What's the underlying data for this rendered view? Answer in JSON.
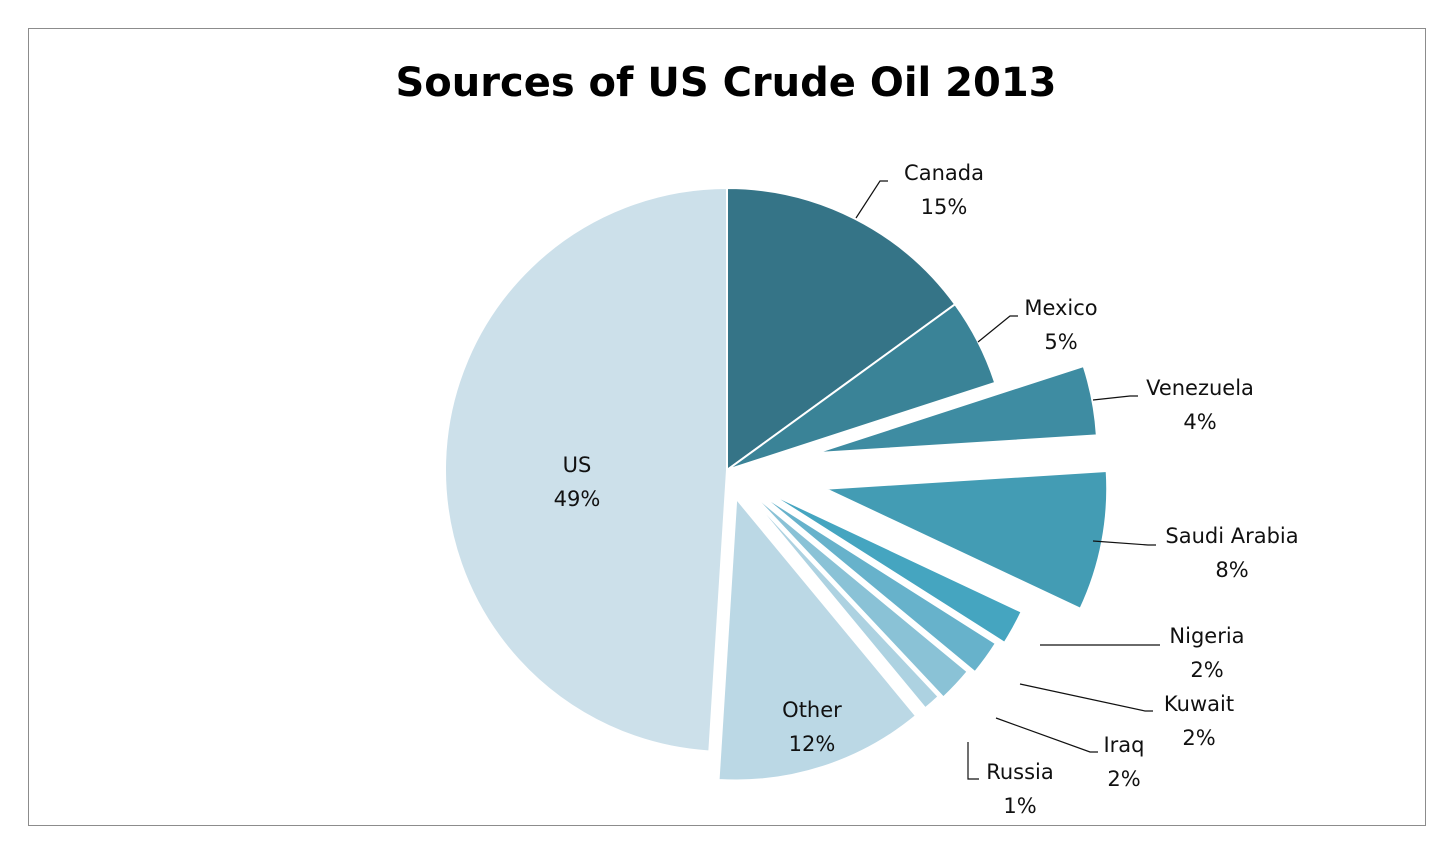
{
  "chart_data": {
    "type": "pie",
    "title": "Sources of US Crude Oil 2013",
    "slices": [
      {
        "label": "Canada",
        "value": 15,
        "value_label": "15%",
        "color": "#357487"
      },
      {
        "label": "Mexico",
        "value": 5,
        "value_label": "5%",
        "color": "#3A8397"
      },
      {
        "label": "Venezuela",
        "value": 4,
        "value_label": "4%",
        "color": "#3E8CA2"
      },
      {
        "label": "Saudi Arabia",
        "value": 8,
        "value_label": "8%",
        "color": "#439CB4"
      },
      {
        "label": "Nigeria",
        "value": 2,
        "value_label": "2%",
        "color": "#45A5C0"
      },
      {
        "label": "Kuwait",
        "value": 2,
        "value_label": "2%",
        "color": "#67B2CB"
      },
      {
        "label": "Iraq",
        "value": 2,
        "value_label": "2%",
        "color": "#8AC2D6"
      },
      {
        "label": "Russia",
        "value": 1,
        "value_label": "1%",
        "color": "#ADD2E1"
      },
      {
        "label": "Other",
        "value": 12,
        "value_label": "12%",
        "color": "#BBD8E5"
      },
      {
        "label": "US",
        "value": 49,
        "value_label": "49%",
        "color": "#CCE0EA"
      }
    ],
    "start_angle_deg": 0,
    "direction": "clockwise",
    "exploded": [
      "Venezuela",
      "Saudi Arabia",
      "Nigeria",
      "Kuwait",
      "Iraq",
      "Russia",
      "Other"
    ],
    "legend": "none",
    "data_labels": "outside-with-leader-lines"
  }
}
